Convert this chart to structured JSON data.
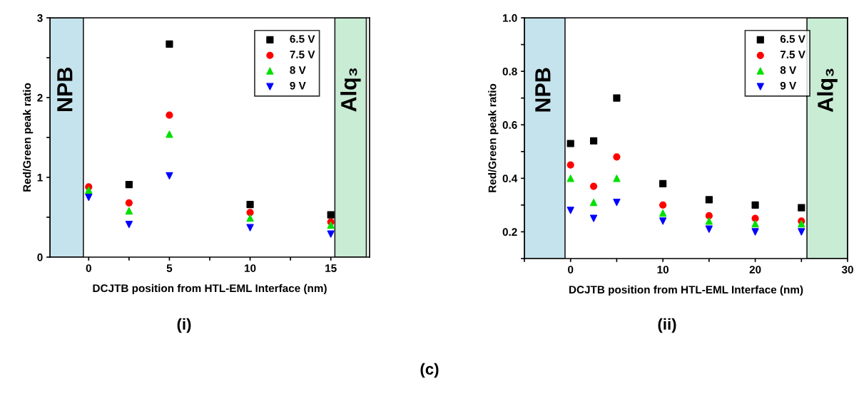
{
  "chart_data": [
    {
      "type": "scatter",
      "xlabel": "DCJTB position from HTL-EML Interface (nm)",
      "ylabel": "Red/Green peak ratio",
      "x": [
        0,
        2.5,
        5,
        10,
        15
      ],
      "series": [
        {
          "name": "6.5 V",
          "color": "#000000",
          "marker": "square",
          "values": [
            null,
            0.91,
            2.67,
            0.66,
            0.53
          ]
        },
        {
          "name": "7.5 V",
          "color": "#ff0000",
          "marker": "circle",
          "values": [
            0.88,
            0.68,
            1.78,
            0.56,
            0.44
          ]
        },
        {
          "name": "8 V",
          "color": "#00e000",
          "marker": "triangle",
          "values": [
            0.84,
            0.58,
            1.54,
            0.49,
            0.4
          ]
        },
        {
          "name": "9 V",
          "color": "#0000ff",
          "marker": "triangle-down",
          "values": [
            0.75,
            0.41,
            1.02,
            0.37,
            0.29
          ]
        }
      ],
      "xlim": [
        -2.4,
        17.4
      ],
      "ylim": [
        0,
        3
      ],
      "xticks": [
        0,
        {
          "value": 2.5,
          "label": null
        },
        5,
        {
          "value": 7.5,
          "label": null
        },
        10,
        {
          "value": 12.5,
          "label": null
        },
        15
      ],
      "yticks": [
        0,
        {
          "value": 0.5,
          "label": null
        },
        1,
        {
          "value": 1.5,
          "label": null
        },
        2,
        {
          "value": 2.5,
          "label": null
        },
        3
      ],
      "bands": [
        {
          "axis": "x",
          "from": -2.4,
          "to": -0.33,
          "label": "NPB",
          "color": "#c5e3ec"
        },
        {
          "axis": "x",
          "from": 15.25,
          "to": 17.2,
          "label": "Alq₃",
          "color": "#c8ecd4"
        }
      ],
      "legend": "top right",
      "grid": false,
      "annotations": [
        "(i)"
      ]
    },
    {
      "type": "scatter",
      "xlabel": "DCJTB position from HTL-EML Interface (nm)",
      "ylabel": "Red/Green peak ratio",
      "x": [
        0,
        2.5,
        5,
        10,
        15,
        20,
        25
      ],
      "series": [
        {
          "name": "6.5 V",
          "color": "#000000",
          "marker": "square",
          "values": [
            0.53,
            0.54,
            0.7,
            0.38,
            0.32,
            0.3,
            0.29
          ]
        },
        {
          "name": "7.5 V",
          "color": "#ff0000",
          "marker": "circle",
          "values": [
            0.45,
            0.37,
            0.48,
            0.3,
            0.26,
            0.25,
            0.24
          ]
        },
        {
          "name": "8 V",
          "color": "#00e000",
          "marker": "triangle",
          "values": [
            0.4,
            0.31,
            0.4,
            0.27,
            0.24,
            0.23,
            0.23
          ]
        },
        {
          "name": "9 V",
          "color": "#0000ff",
          "marker": "triangle-down",
          "values": [
            0.28,
            0.25,
            0.31,
            0.24,
            0.21,
            0.2,
            0.2
          ]
        }
      ],
      "xlim": [
        -5,
        30
      ],
      "ylim": [
        0.1,
        1.0
      ],
      "xticks": [
        {
          "value": -5,
          "label": null
        },
        0,
        {
          "value": 5,
          "label": null
        },
        10,
        {
          "value": 15,
          "label": null
        },
        20,
        {
          "value": 25,
          "label": null
        },
        30
      ],
      "yticks": [
        {
          "value": 0.1,
          "label": null
        },
        0.2,
        {
          "value": 0.3,
          "label": null
        },
        0.4,
        {
          "value": 0.5,
          "label": null
        },
        0.6,
        {
          "value": 0.7,
          "label": null
        },
        0.8,
        {
          "value": 0.9,
          "label": null
        },
        {
          "value": 1.0,
          "label": "1.0"
        }
      ],
      "bands": [
        {
          "axis": "x",
          "from": -5,
          "to": -0.6,
          "label": "NPB",
          "color": "#c5e3ec"
        },
        {
          "axis": "x",
          "from": 25.6,
          "to": 30,
          "label": "Alq₃",
          "color": "#c8ecd4"
        }
      ],
      "legend": "top right",
      "grid": false,
      "annotations": [
        "(ii)",
        "(c)"
      ]
    }
  ]
}
